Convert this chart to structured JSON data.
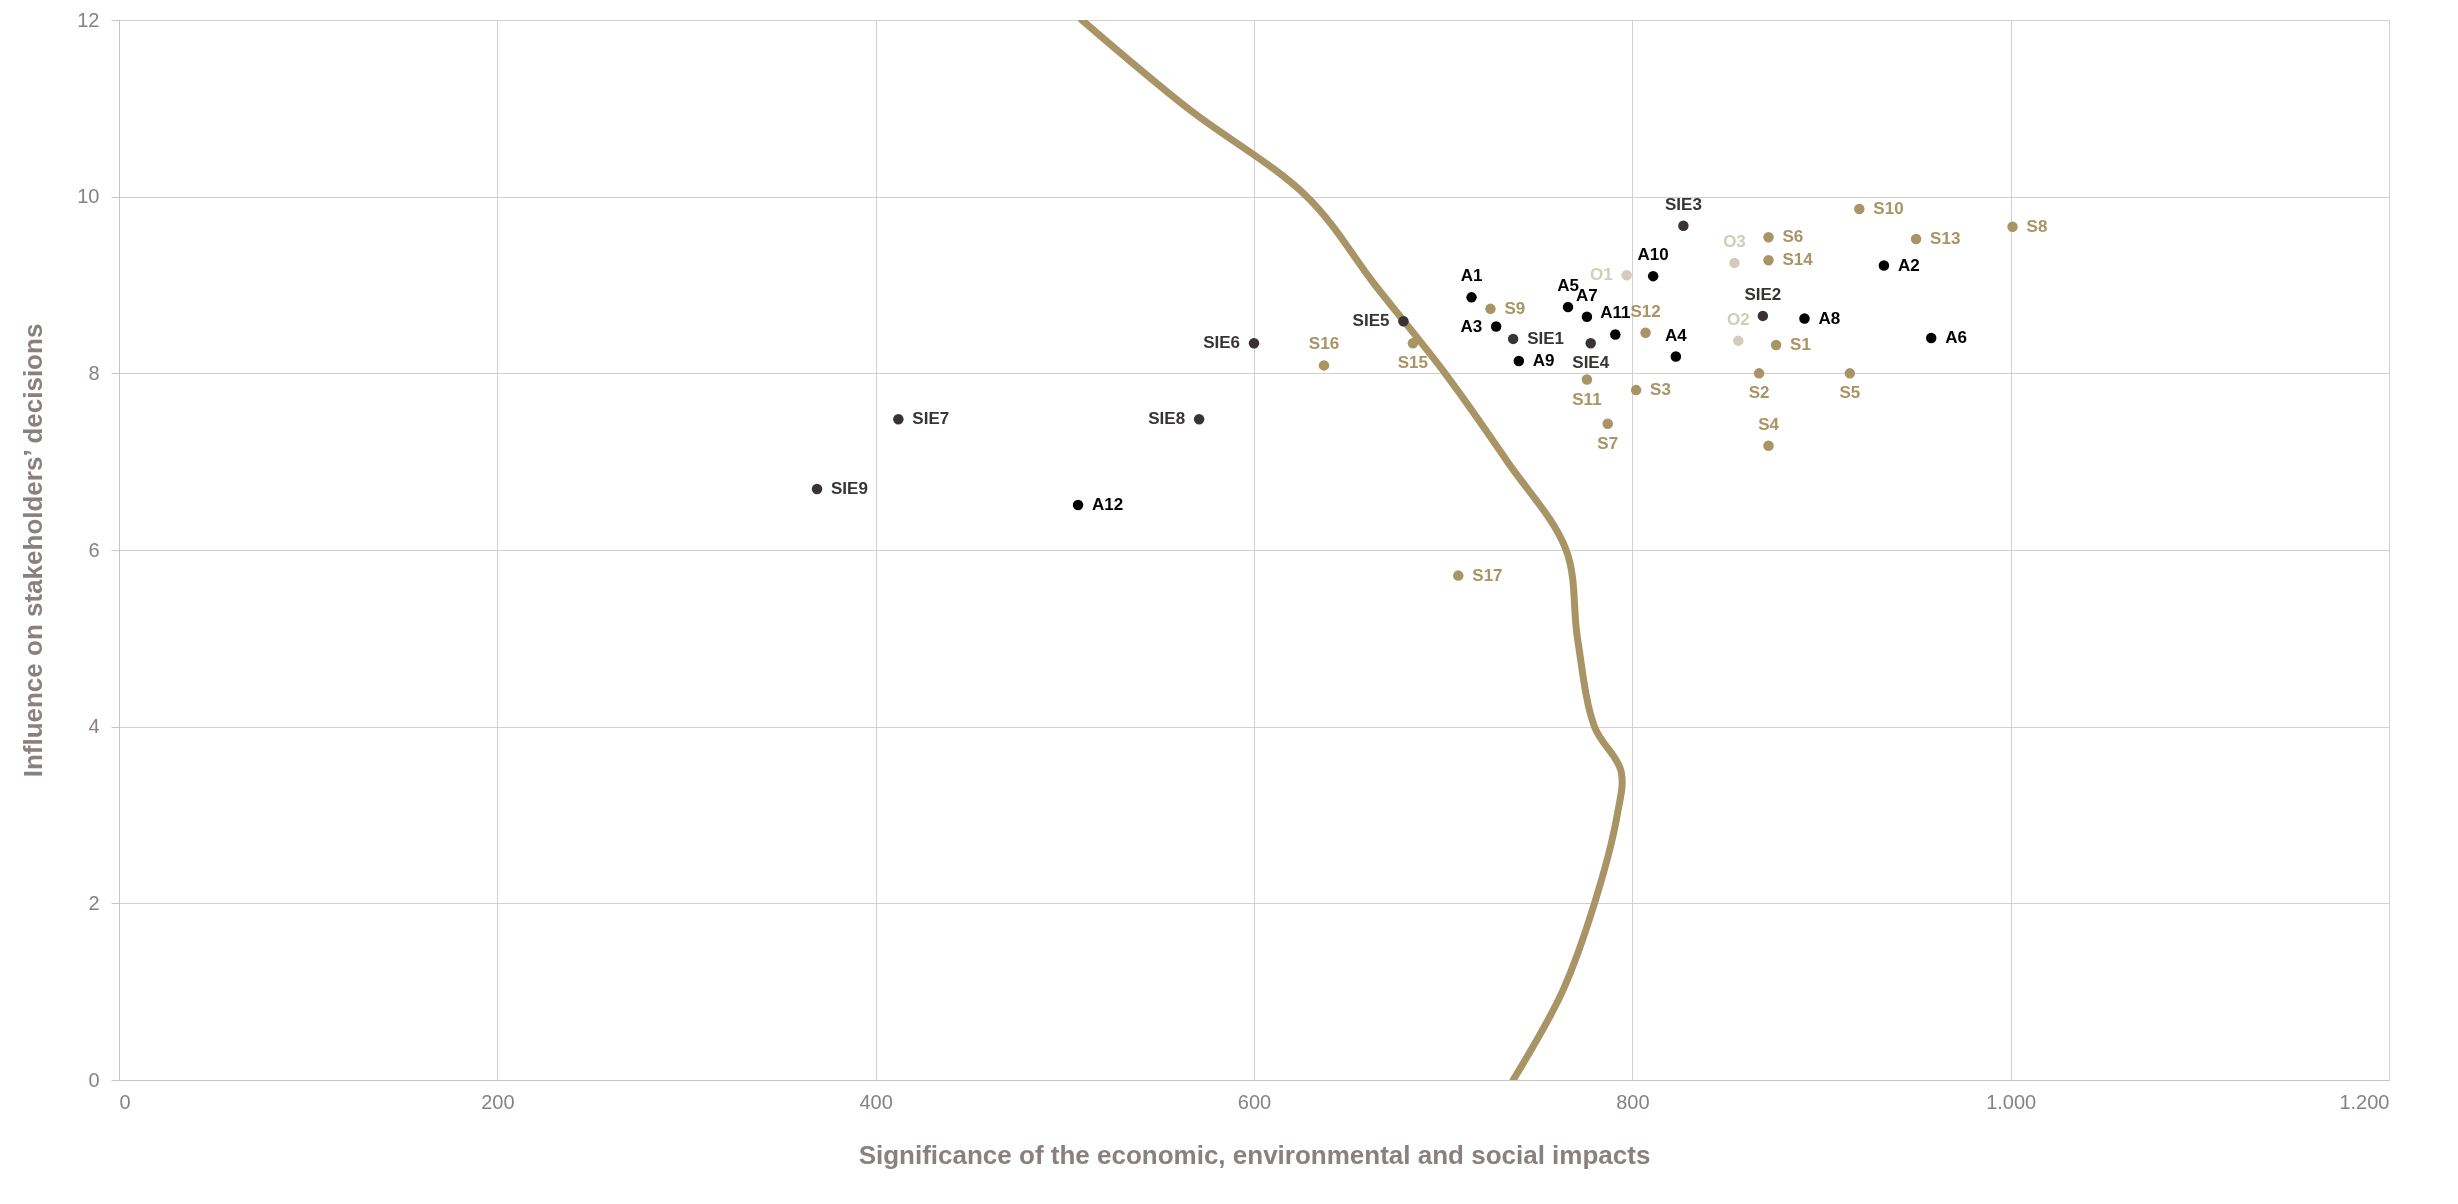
{
  "chart_data": {
    "type": "scatter",
    "xlabel": "Significance of the economic, environmental and social impacts",
    "ylabel": "Influence on stakeholders’ decisions",
    "xlim": [
      0,
      1200
    ],
    "ylim": [
      0,
      12
    ],
    "xticks": [
      0,
      200,
      400,
      600,
      800,
      {
        "value": 1000,
        "label": "1.000"
      },
      {
        "value": 1200,
        "label": "1.200"
      }
    ],
    "yticks": [
      0,
      2,
      4,
      6,
      8,
      10,
      12
    ],
    "grid": true,
    "marker": "circle",
    "series": [
      {
        "color": "#000000",
        "x": [
          715,
          933,
          728,
          823,
          766,
          958,
          776,
          891,
          740,
          811,
          791,
          507
        ],
        "values": [
          8.86,
          9.22,
          8.53,
          8.19,
          8.75,
          8.4,
          8.64,
          8.62,
          8.14,
          9.1,
          8.44,
          6.51
        ]
      },
      {
        "color": "#3a3333",
        "x": [
          737,
          869,
          827,
          778,
          679,
          600,
          412,
          571,
          369
        ],
        "values": [
          8.39,
          8.65,
          9.67,
          8.34,
          8.59,
          8.34,
          7.48,
          7.48,
          6.69
        ]
      },
      {
        "color": "#a89465",
        "x": [
          876,
          867,
          802,
          872,
          915,
          872,
          787,
          1001,
          725,
          920,
          776,
          807,
          950,
          872,
          684,
          637,
          708
        ],
        "values": [
          8.32,
          8,
          7.81,
          7.18,
          8,
          9.54,
          7.43,
          9.66,
          8.73,
          9.86,
          7.93,
          8.46,
          9.52,
          9.28,
          8.34,
          8.09,
          5.71
        ]
      },
      {
        "color": "#d4cbbd",
        "x": [
          797,
          856,
          854
        ],
        "values": [
          9.11,
          8.37,
          9.25
        ]
      },
      {
        "type": "line",
        "color": "#a89465",
        "marker": "none",
        "x": [
          509,
          565,
          628,
          664,
          701,
          734,
          765,
          771,
          780,
          794,
          792,
          780,
          763,
          737
        ],
        "values": [
          12,
          11,
          10,
          9,
          8,
          7,
          6,
          5,
          4,
          3.5,
          3,
          2,
          1,
          0
        ]
      }
    ],
    "annotations": [
      {
        "text": "A1",
        "x": 715,
        "y": 8.86
      },
      {
        "text": "A2",
        "x": 933,
        "y": 9.22
      },
      {
        "text": "A3",
        "x": 728,
        "y": 8.53
      },
      {
        "text": "A4",
        "x": 823,
        "y": 8.19
      },
      {
        "text": "A5",
        "x": 766,
        "y": 8.75
      },
      {
        "text": "A6",
        "x": 958,
        "y": 8.4
      },
      {
        "text": "A7",
        "x": 776,
        "y": 8.64
      },
      {
        "text": "A8",
        "x": 891,
        "y": 8.62
      },
      {
        "text": "A9",
        "x": 740,
        "y": 8.14
      },
      {
        "text": "A10",
        "x": 811,
        "y": 9.1
      },
      {
        "text": "A11",
        "x": 791,
        "y": 8.44
      },
      {
        "text": "A12",
        "x": 507,
        "y": 6.51
      },
      {
        "text": "SIE1",
        "x": 737,
        "y": 8.39
      },
      {
        "text": "SIE2",
        "x": 869,
        "y": 8.65
      },
      {
        "text": "SIE3",
        "x": 827,
        "y": 9.67
      },
      {
        "text": "SIE4",
        "x": 778,
        "y": 8.34
      },
      {
        "text": "SIE5",
        "x": 679,
        "y": 8.59
      },
      {
        "text": "SIE6",
        "x": 600,
        "y": 8.34
      },
      {
        "text": "SIE7",
        "x": 412,
        "y": 7.48
      },
      {
        "text": "SIE8",
        "x": 571,
        "y": 7.48
      },
      {
        "text": "SIE9",
        "x": 369,
        "y": 6.69
      },
      {
        "text": "S1",
        "x": 876,
        "y": 8.32
      },
      {
        "text": "S2",
        "x": 867,
        "y": 8
      },
      {
        "text": "S3",
        "x": 802,
        "y": 7.81
      },
      {
        "text": "S4",
        "x": 872,
        "y": 7.18
      },
      {
        "text": "S5",
        "x": 915,
        "y": 8
      },
      {
        "text": "S6",
        "x": 872,
        "y": 9.54
      },
      {
        "text": "S7",
        "x": 787,
        "y": 7.43
      },
      {
        "text": "S8",
        "x": 1001,
        "y": 9.66
      },
      {
        "text": "S9",
        "x": 725,
        "y": 8.73
      },
      {
        "text": "S10",
        "x": 920,
        "y": 9.86
      },
      {
        "text": "S11",
        "x": 776,
        "y": 7.93
      },
      {
        "text": "S12",
        "x": 807,
        "y": 8.46
      },
      {
        "text": "S13",
        "x": 950,
        "y": 9.52
      },
      {
        "text": "S14",
        "x": 872,
        "y": 9.28
      },
      {
        "text": "S15",
        "x": 684,
        "y": 8.34
      },
      {
        "text": "S16",
        "x": 637,
        "y": 8.09
      },
      {
        "text": "S17",
        "x": 708,
        "y": 5.71
      },
      {
        "text": "O1",
        "x": 797,
        "y": 9.11
      },
      {
        "text": "O2",
        "x": 856,
        "y": 8.37
      },
      {
        "text": "O3",
        "x": 854,
        "y": 9.25
      }
    ]
  }
}
